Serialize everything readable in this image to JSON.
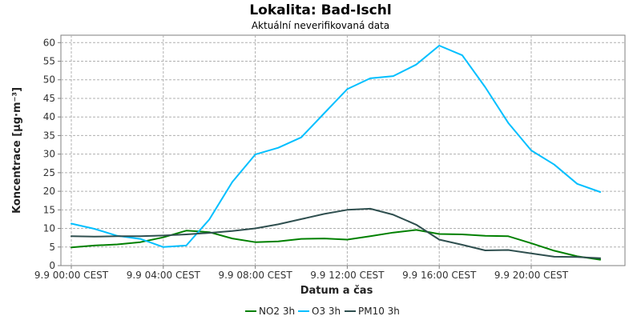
{
  "chart_data": {
    "type": "line",
    "title": "Lokalita: Bad-Ischl",
    "subtitle": "Aktuální neverifikovaná data",
    "xlabel": "Datum a čas",
    "ylabel": "Koncentrace [µg·m⁻³]",
    "ylim": [
      0,
      62
    ],
    "xlim": [
      0,
      24
    ],
    "yticks": [
      0,
      5,
      10,
      15,
      20,
      25,
      30,
      35,
      40,
      45,
      50,
      55,
      60
    ],
    "xticks": [
      {
        "value": 0,
        "label": "9.9 00:00 CEST"
      },
      {
        "value": 4,
        "label": "9.9 04:00 CEST"
      },
      {
        "value": 8,
        "label": "9.9 08:00 CEST"
      },
      {
        "value": 12,
        "label": "9.9 12:00 CEST"
      },
      {
        "value": 16,
        "label": "9.9 16:00 CEST"
      },
      {
        "value": 20,
        "label": "9.9 20:00 CEST"
      }
    ],
    "grid": true,
    "legend_position": "bottom",
    "x": [
      0,
      1,
      2,
      3,
      4,
      5,
      6,
      7,
      8,
      9,
      10,
      11,
      12,
      13,
      14,
      15,
      16,
      17,
      18,
      19,
      20,
      21,
      22,
      23
    ],
    "series": [
      {
        "name": "NO2 3h",
        "color": "#008000",
        "values": [
          4.9,
          5.4,
          5.7,
          6.3,
          7.6,
          9.4,
          9.0,
          7.3,
          6.3,
          6.5,
          7.2,
          7.3,
          7.0,
          7.9,
          8.9,
          9.6,
          8.5,
          8.4,
          8.0,
          7.9,
          6.0,
          4.0,
          2.5,
          1.6
        ]
      },
      {
        "name": "O3 3h",
        "color": "#00BFFF",
        "values": [
          11.3,
          9.9,
          8.0,
          7.2,
          5.0,
          5.4,
          12.4,
          22.5,
          29.9,
          31.7,
          34.5,
          41.0,
          47.5,
          50.4,
          51.0,
          54.1,
          59.2,
          56.6,
          48.0,
          38.4,
          31.0,
          27.2,
          22.0,
          19.8
        ]
      },
      {
        "name": "PM10 3h",
        "color": "#2F4F4F",
        "values": [
          7.9,
          7.8,
          7.9,
          7.9,
          8.1,
          8.4,
          8.8,
          9.3,
          10.0,
          11.1,
          12.5,
          13.9,
          15.0,
          15.3,
          13.7,
          11.0,
          7.0,
          5.6,
          4.1,
          4.2,
          3.3,
          2.4,
          2.3,
          2.0
        ]
      }
    ]
  }
}
